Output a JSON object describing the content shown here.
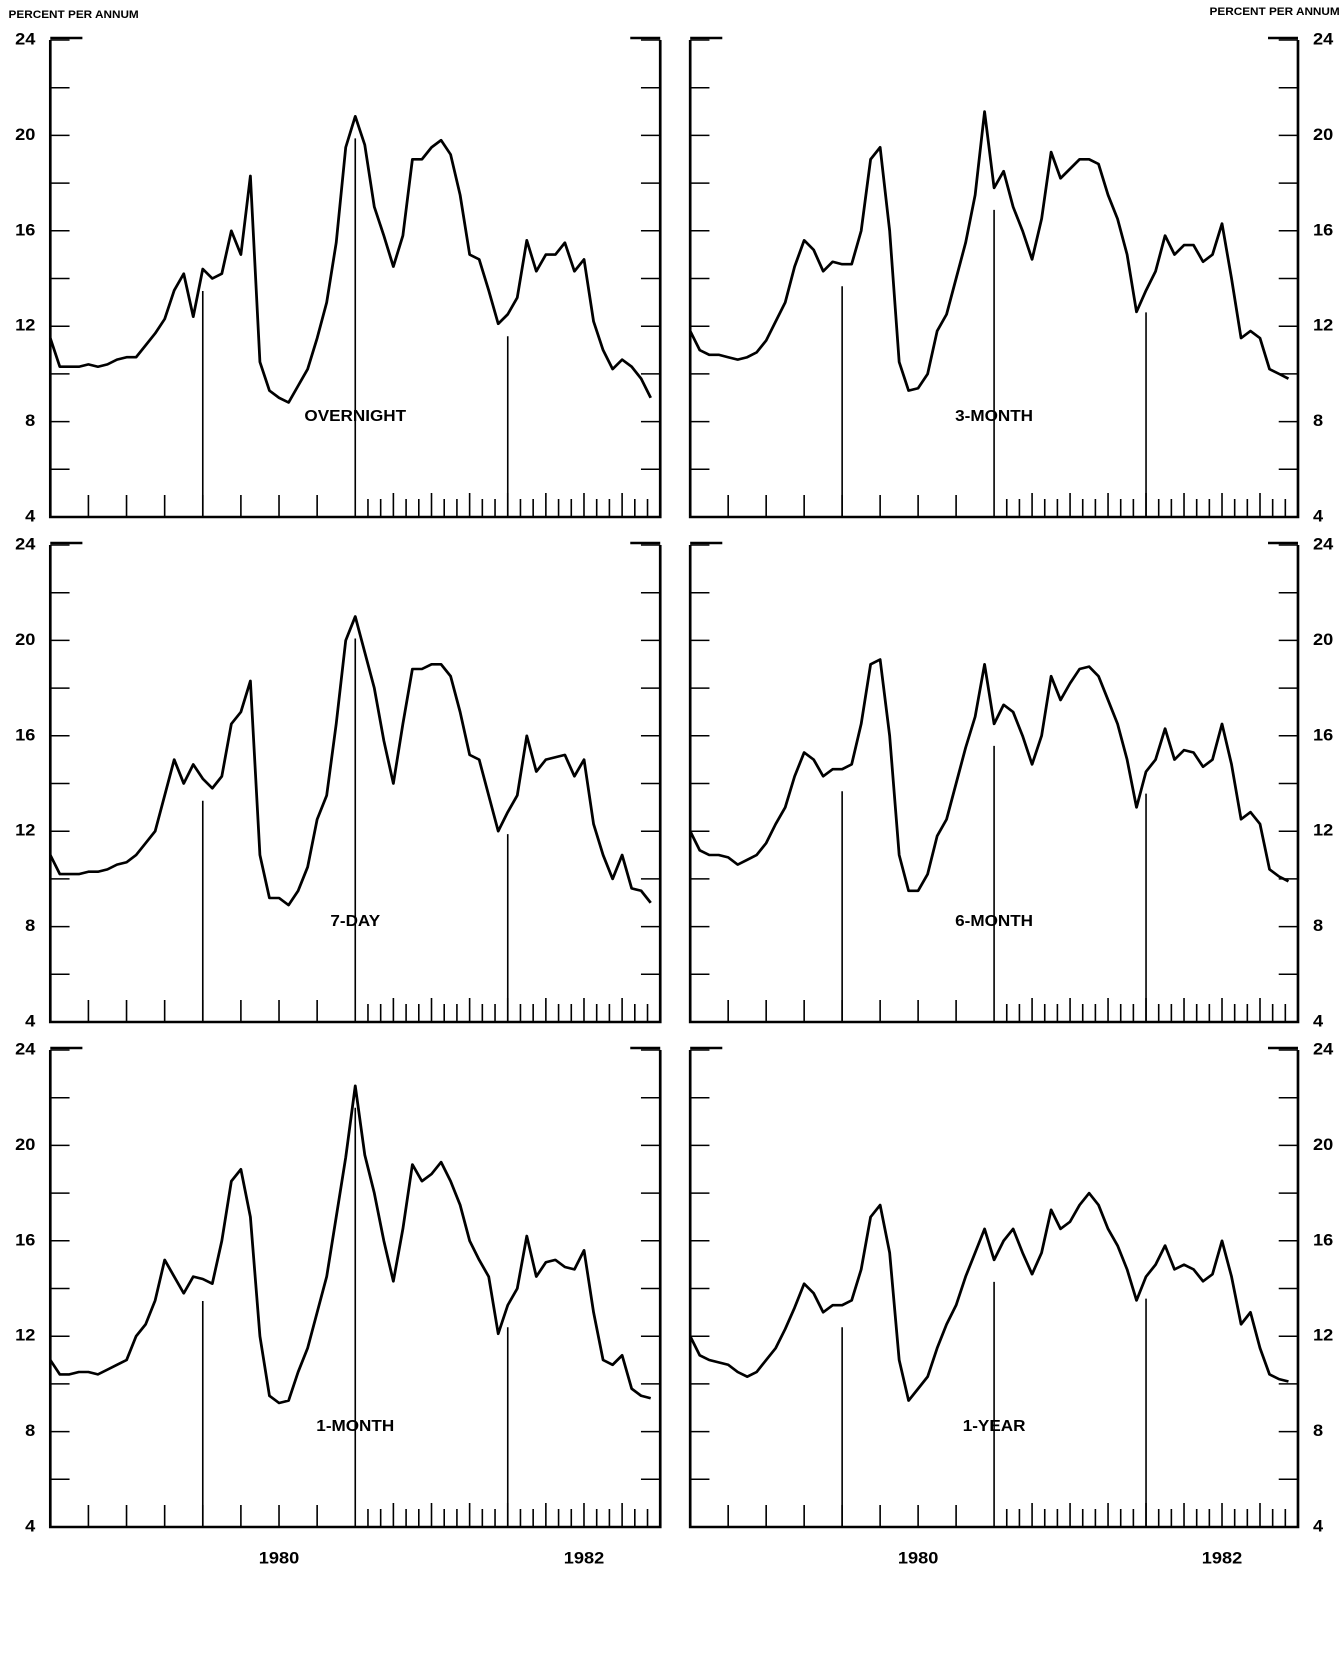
{
  "chart_data": {
    "type": "line",
    "y_label": "PERCENT PER ANNUM",
    "x": [
      1979,
      1979.0625,
      1979.125,
      1979.1875,
      1979.25,
      1979.3125,
      1979.375,
      1979.4375,
      1979.5,
      1979.5625,
      1979.625,
      1979.6875,
      1979.75,
      1979.8125,
      1979.875,
      1979.9375,
      1980,
      1980.0625,
      1980.125,
      1980.1875,
      1980.25,
      1980.3125,
      1980.375,
      1980.4375,
      1980.5,
      1980.5625,
      1980.625,
      1980.6875,
      1980.75,
      1980.8125,
      1980.875,
      1980.9375,
      1981,
      1981.0625,
      1981.125,
      1981.1875,
      1981.25,
      1981.3125,
      1981.375,
      1981.4375,
      1981.5,
      1981.5625,
      1981.625,
      1981.6875,
      1981.75,
      1981.8125,
      1981.875,
      1981.9375,
      1982,
      1982.0625,
      1982.125,
      1982.1875,
      1982.25,
      1982.3125,
      1982.375,
      1982.4375,
      1982.5,
      1982.5625,
      1982.625,
      1982.6875,
      1982.75,
      1982.8125,
      1982.875,
      1982.9375
    ],
    "xlim": [
      1979,
      1983
    ],
    "xticks": [
      {
        "value": 1980.5,
        "label": "1980"
      },
      {
        "value": 1982.5,
        "label": "1982"
      }
    ],
    "year_lines": [
      1980,
      1981,
      1982
    ],
    "ylim": [
      4,
      24
    ],
    "yticks": [
      4,
      8,
      12,
      16,
      20,
      24
    ],
    "series": [
      {
        "name": "OVERNIGHT",
        "color": "#000000",
        "values": [
          11.5,
          10.3,
          10.3,
          10.3,
          10.4,
          10.3,
          10.4,
          10.6,
          10.7,
          10.7,
          11.2,
          11.7,
          12.3,
          13.5,
          14.2,
          12.4,
          14.4,
          14.0,
          14.2,
          16.0,
          15.0,
          18.3,
          10.5,
          9.3,
          9.0,
          8.8,
          9.5,
          10.2,
          11.5,
          13.0,
          15.5,
          19.5,
          20.8,
          19.6,
          17.0,
          15.8,
          14.5,
          15.8,
          19.0,
          19.0,
          19.5,
          19.8,
          19.2,
          17.5,
          15.0,
          14.8,
          13.5,
          12.1,
          12.5,
          13.2,
          15.6,
          14.3,
          15.0,
          15.0,
          15.5,
          14.3,
          14.8,
          12.2,
          11.0,
          10.2,
          10.6,
          10.3,
          9.8,
          9.0
        ]
      },
      {
        "name": "3-MONTH",
        "color": "#000000",
        "values": [
          11.8,
          11.0,
          10.8,
          10.8,
          10.7,
          10.6,
          10.7,
          10.9,
          11.4,
          12.2,
          13.0,
          14.5,
          15.6,
          15.2,
          14.3,
          14.7,
          14.6,
          14.6,
          16.0,
          19.0,
          19.5,
          16.0,
          10.5,
          9.3,
          9.4,
          10.0,
          11.8,
          12.5,
          14.0,
          15.5,
          17.5,
          21.0,
          17.8,
          18.5,
          17.0,
          16.0,
          14.8,
          16.5,
          19.3,
          18.2,
          18.6,
          19.0,
          19.0,
          18.8,
          17.5,
          16.5,
          15.0,
          12.6,
          13.5,
          14.3,
          15.8,
          15.0,
          15.4,
          15.4,
          14.7,
          15.0,
          16.3,
          14.0,
          11.5,
          11.8,
          11.5,
          10.2,
          10.0,
          9.8
        ]
      },
      {
        "name": "7-DAY",
        "color": "#000000",
        "values": [
          11.0,
          10.2,
          10.2,
          10.2,
          10.3,
          10.3,
          10.4,
          10.6,
          10.7,
          11.0,
          11.5,
          12.0,
          13.5,
          15.0,
          14.0,
          14.8,
          14.2,
          13.8,
          14.3,
          16.5,
          17.0,
          18.3,
          11.0,
          9.2,
          9.2,
          8.9,
          9.5,
          10.5,
          12.5,
          13.5,
          16.5,
          20.0,
          21.0,
          19.5,
          18.0,
          15.8,
          14.0,
          16.5,
          18.8,
          18.8,
          19.0,
          19.0,
          18.5,
          17.0,
          15.2,
          15.0,
          13.5,
          12.0,
          12.8,
          13.5,
          16.0,
          14.5,
          15.0,
          15.1,
          15.2,
          14.3,
          15.0,
          12.3,
          11.0,
          10.0,
          11.0,
          9.6,
          9.5,
          9.0
        ]
      },
      {
        "name": "6-MONTH",
        "color": "#000000",
        "values": [
          12.0,
          11.2,
          11.0,
          11.0,
          10.9,
          10.6,
          10.8,
          11.0,
          11.5,
          12.3,
          13.0,
          14.3,
          15.3,
          15.0,
          14.3,
          14.6,
          14.6,
          14.8,
          16.5,
          19.0,
          19.2,
          16.0,
          11.0,
          9.5,
          9.5,
          10.2,
          11.8,
          12.5,
          14.0,
          15.5,
          16.8,
          19.0,
          16.5,
          17.3,
          17.0,
          16.0,
          14.8,
          16.0,
          18.5,
          17.5,
          18.2,
          18.8,
          18.9,
          18.5,
          17.5,
          16.5,
          15.0,
          13.0,
          14.5,
          15.0,
          16.3,
          15.0,
          15.4,
          15.3,
          14.7,
          15.0,
          16.5,
          14.8,
          12.5,
          12.8,
          12.3,
          10.4,
          10.1,
          9.9
        ]
      },
      {
        "name": "1-MONTH",
        "color": "#000000",
        "values": [
          11.0,
          10.4,
          10.4,
          10.5,
          10.5,
          10.4,
          10.6,
          10.8,
          11.0,
          12.0,
          12.5,
          13.5,
          15.2,
          14.5,
          13.8,
          14.5,
          14.4,
          14.2,
          16.0,
          18.5,
          19.0,
          17.0,
          12.0,
          9.5,
          9.2,
          9.3,
          10.5,
          11.5,
          13.0,
          14.5,
          17.0,
          19.5,
          22.5,
          19.6,
          18.0,
          16.0,
          14.3,
          16.5,
          19.2,
          18.5,
          18.8,
          19.3,
          18.5,
          17.5,
          16.0,
          15.2,
          14.5,
          12.1,
          13.3,
          14.0,
          16.2,
          14.5,
          15.1,
          15.2,
          14.9,
          14.8,
          15.6,
          13.0,
          11.0,
          10.8,
          11.2,
          9.8,
          9.5,
          9.4
        ]
      },
      {
        "name": "1-YEAR",
        "color": "#000000",
        "values": [
          12.0,
          11.2,
          11.0,
          10.9,
          10.8,
          10.5,
          10.3,
          10.5,
          11.0,
          11.5,
          12.3,
          13.2,
          14.2,
          13.8,
          13.0,
          13.3,
          13.3,
          13.5,
          14.8,
          17.0,
          17.5,
          15.5,
          11.0,
          9.3,
          9.8,
          10.3,
          11.5,
          12.5,
          13.3,
          14.5,
          15.5,
          16.5,
          15.2,
          16.0,
          16.5,
          15.5,
          14.6,
          15.5,
          17.3,
          16.5,
          16.8,
          17.5,
          18.0,
          17.5,
          16.5,
          15.8,
          14.8,
          13.5,
          14.5,
          15.0,
          15.8,
          14.8,
          15.0,
          14.8,
          14.3,
          14.6,
          16.0,
          14.5,
          12.5,
          13.0,
          11.5,
          10.4,
          10.2,
          10.1
        ]
      }
    ]
  }
}
